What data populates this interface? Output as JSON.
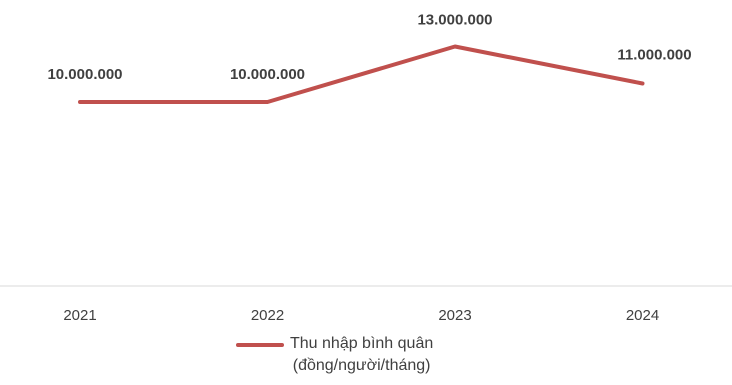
{
  "chart_data": {
    "type": "line",
    "categories": [
      "2021",
      "2022",
      "2023",
      "2024"
    ],
    "series": [
      {
        "name": "Thu nhập bình quân (đồng/người/tháng)",
        "values": [
          10000000,
          10000000,
          13000000,
          11000000
        ],
        "labels": [
          "10.000.000",
          "10.000.000",
          "13.000.000",
          "11.000.000"
        ],
        "color": "#c0504d"
      }
    ],
    "legend": {
      "line1": "Thu nhập bình quân",
      "line2": "(đồng/người/tháng)",
      "position": "bottom"
    },
    "title": "",
    "xlabel": "",
    "ylabel": "",
    "grid": false,
    "axis_color": "#d9d9d9"
  }
}
